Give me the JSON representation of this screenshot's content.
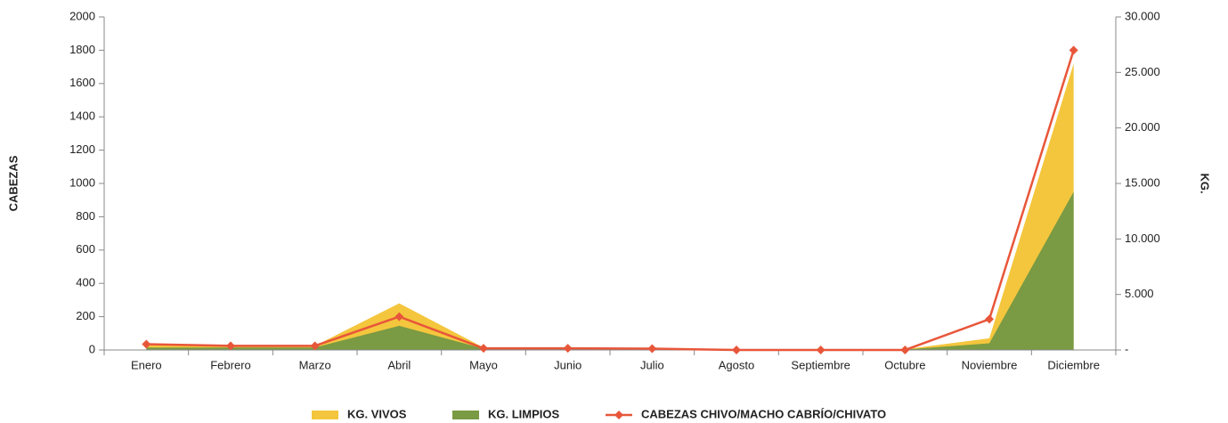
{
  "chart_data": {
    "type": "area-line",
    "categories": [
      "Enero",
      "Febrero",
      "Marzo",
      "Abril",
      "Mayo",
      "Junio",
      "Julio",
      "Agosto",
      "Septiembre",
      "Octubre",
      "Noviembre",
      "Diciembre"
    ],
    "ylabel": "CABEZAS",
    "y2label": "KG.",
    "ylim": [
      0,
      2000
    ],
    "yticks": [
      0,
      200,
      400,
      600,
      800,
      1000,
      1200,
      1400,
      1600,
      1800,
      2000
    ],
    "y2lim": [
      0,
      30000
    ],
    "y2ticks": [
      {
        "value": 0,
        "label": "-"
      },
      {
        "value": 5000,
        "label": "5.000"
      },
      {
        "value": 10000,
        "label": "10.000"
      },
      {
        "value": 15000,
        "label": "15.000"
      },
      {
        "value": 20000,
        "label": "20.000"
      },
      {
        "value": 25000,
        "label": "25.000"
      },
      {
        "value": 30000,
        "label": "30.000"
      }
    ],
    "series": [
      {
        "name": "KG. VIVOS",
        "color": "#f4c63d",
        "kind": "area",
        "axis": "y2",
        "values": [
          450,
          375,
          375,
          4200,
          225,
          225,
          150,
          0,
          0,
          75,
          1050,
          25800
        ]
      },
      {
        "name": "KG. LIMPIOS",
        "color": "#7a9a43",
        "kind": "area",
        "axis": "y2",
        "values": [
          225,
          225,
          225,
          2175,
          120,
          120,
          75,
          0,
          0,
          45,
          600,
          14250
        ]
      },
      {
        "name": "CABEZAS CHIVO/MACHO CABRÍO/CHIVATO",
        "color": "#e8563a",
        "kind": "line",
        "values": [
          35,
          25,
          25,
          200,
          10,
          10,
          8,
          0,
          0,
          0,
          185,
          1800
        ]
      }
    ]
  }
}
